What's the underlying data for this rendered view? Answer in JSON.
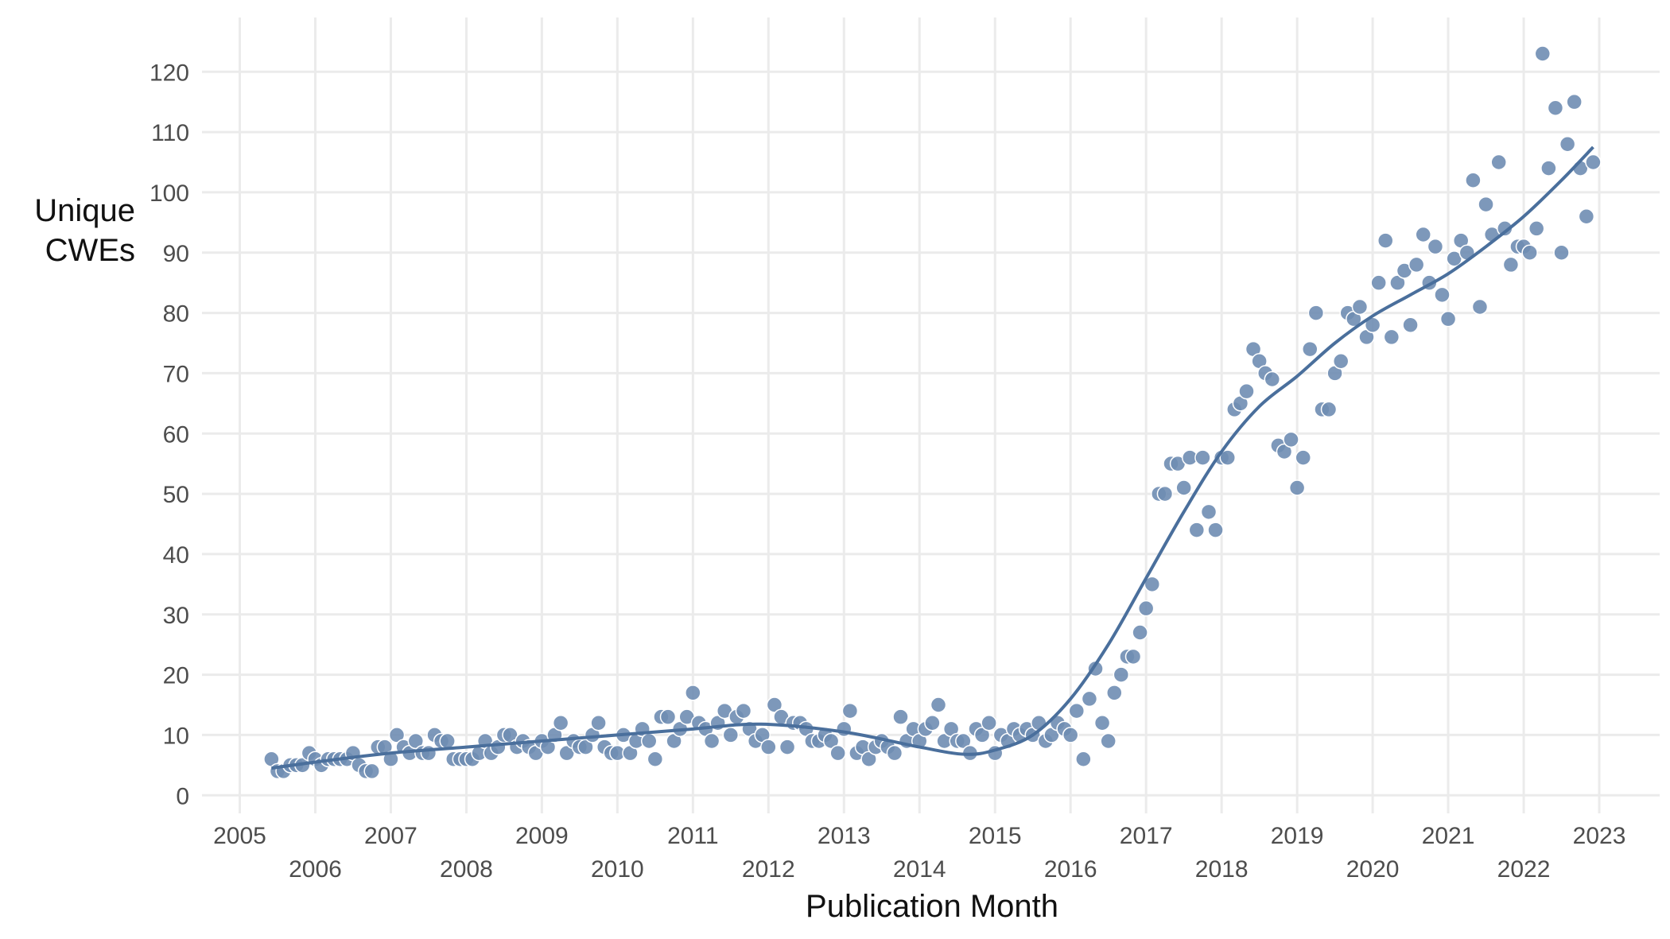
{
  "chart_data": {
    "type": "scatter",
    "x_label": "Publication Month",
    "y_label": "Unique CWEs",
    "xlim": [
      2004.5,
      2023.8
    ],
    "ylim": [
      -3,
      129
    ],
    "xticks": [
      2005,
      2006,
      2007,
      2008,
      2009,
      2010,
      2011,
      2012,
      2013,
      2014,
      2015,
      2016,
      2017,
      2018,
      2019,
      2020,
      2021,
      2022,
      2023
    ],
    "yticks": [
      0,
      10,
      20,
      30,
      40,
      50,
      60,
      70,
      80,
      90,
      100,
      110,
      120
    ],
    "grid": true,
    "color": "#6f8db3",
    "x": [
      2005.42,
      2005.5,
      2005.58,
      2005.67,
      2005.75,
      2005.83,
      2005.92,
      2006,
      2006.08,
      2006.17,
      2006.25,
      2006.33,
      2006.42,
      2006.5,
      2006.58,
      2006.67,
      2006.75,
      2006.83,
      2006.92,
      2007,
      2007.08,
      2007.17,
      2007.25,
      2007.33,
      2007.42,
      2007.5,
      2007.58,
      2007.67,
      2007.75,
      2007.83,
      2007.92,
      2008,
      2008.08,
      2008.17,
      2008.25,
      2008.33,
      2008.42,
      2008.5,
      2008.58,
      2008.67,
      2008.75,
      2008.83,
      2008.92,
      2009,
      2009.08,
      2009.17,
      2009.25,
      2009.33,
      2009.42,
      2009.5,
      2009.58,
      2009.67,
      2009.75,
      2009.83,
      2009.92,
      2010,
      2010.08,
      2010.17,
      2010.25,
      2010.33,
      2010.42,
      2010.5,
      2010.58,
      2010.67,
      2010.75,
      2010.83,
      2010.92,
      2011,
      2011.08,
      2011.17,
      2011.25,
      2011.33,
      2011.42,
      2011.5,
      2011.58,
      2011.67,
      2011.75,
      2011.83,
      2011.92,
      2012,
      2012.08,
      2012.17,
      2012.25,
      2012.33,
      2012.42,
      2012.5,
      2012.58,
      2012.67,
      2012.75,
      2012.83,
      2012.92,
      2013,
      2013.08,
      2013.17,
      2013.25,
      2013.33,
      2013.42,
      2013.5,
      2013.58,
      2013.67,
      2013.75,
      2013.83,
      2013.92,
      2014,
      2014.08,
      2014.17,
      2014.25,
      2014.33,
      2014.42,
      2014.5,
      2014.58,
      2014.67,
      2014.75,
      2014.83,
      2014.92,
      2015,
      2015.08,
      2015.17,
      2015.25,
      2015.33,
      2015.42,
      2015.5,
      2015.58,
      2015.67,
      2015.75,
      2015.83,
      2015.92,
      2016,
      2016.08,
      2016.17,
      2016.25,
      2016.33,
      2016.42,
      2016.5,
      2016.58,
      2016.67,
      2016.75,
      2016.83,
      2016.92,
      2017,
      2017.08,
      2017.17,
      2017.25,
      2017.33,
      2017.42,
      2017.5,
      2017.58,
      2017.67,
      2017.75,
      2017.83,
      2017.92,
      2018,
      2018.08,
      2018.17,
      2018.25,
      2018.33,
      2018.42,
      2018.5,
      2018.58,
      2018.67,
      2018.75,
      2018.83,
      2018.92,
      2019,
      2019.08,
      2019.17,
      2019.25,
      2019.33,
      2019.42,
      2019.5,
      2019.58,
      2019.67,
      2019.75,
      2019.83,
      2019.92,
      2020,
      2020.08,
      2020.17,
      2020.25,
      2020.33,
      2020.42,
      2020.5,
      2020.58,
      2020.67,
      2020.75,
      2020.83,
      2020.92,
      2021,
      2021.08,
      2021.17,
      2021.25,
      2021.33,
      2021.42,
      2021.5,
      2021.58,
      2021.67,
      2021.75,
      2021.83,
      2021.92,
      2022,
      2022.08,
      2022.17,
      2022.25,
      2022.33,
      2022.42,
      2022.5,
      2022.58,
      2022.67,
      2022.75,
      2022.83,
      2022.92
    ],
    "values": [
      6,
      4,
      4,
      5,
      5,
      5,
      7,
      6,
      5,
      6,
      6,
      6,
      6,
      7,
      5,
      4,
      4,
      8,
      8,
      6,
      10,
      8,
      7,
      9,
      7,
      7,
      10,
      9,
      9,
      6,
      6,
      6,
      6,
      7,
      9,
      7,
      8,
      10,
      10,
      8,
      9,
      8,
      7,
      9,
      8,
      10,
      12,
      7,
      9,
      8,
      8,
      10,
      12,
      8,
      7,
      7,
      10,
      7,
      9,
      11,
      9,
      6,
      13,
      13,
      9,
      11,
      13,
      17,
      12,
      11,
      9,
      12,
      14,
      10,
      13,
      14,
      11,
      9,
      10,
      8,
      15,
      13,
      8,
      12,
      12,
      11,
      9,
      9,
      10,
      9,
      7,
      11,
      14,
      7,
      8,
      6,
      8,
      9,
      8,
      7,
      13,
      9,
      11,
      9,
      11,
      12,
      15,
      9,
      11,
      9,
      9,
      7,
      11,
      10,
      12,
      7,
      10,
      9,
      11,
      10,
      11,
      10,
      12,
      9,
      10,
      12,
      11,
      10,
      14,
      6,
      16,
      21,
      12,
      9,
      17,
      20,
      23,
      23,
      27,
      31,
      35,
      50,
      50,
      55,
      55,
      51,
      56,
      44,
      56,
      47,
      44,
      56,
      56,
      64,
      65,
      67,
      74,
      72,
      70,
      69,
      58,
      57,
      59,
      51,
      56,
      74,
      80,
      64,
      64,
      70,
      72,
      80,
      79,
      81,
      76,
      78,
      85,
      92,
      76,
      85,
      87,
      78,
      88,
      93,
      85,
      91,
      83,
      79,
      89,
      92,
      90,
      102,
      81,
      98,
      93,
      105,
      94,
      88,
      91,
      91,
      90,
      94,
      123,
      104,
      114,
      90,
      108,
      115,
      104,
      96,
      105
    ],
    "smooth": {
      "color": "#4a6f9c",
      "x": [
        2005.42,
        2006,
        2007,
        2008,
        2009,
        2010,
        2011,
        2011.9,
        2013,
        2014,
        2014.6,
        2015,
        2015.5,
        2016,
        2016.5,
        2017,
        2017.5,
        2018,
        2018.5,
        2019,
        2019.5,
        2020,
        2020.5,
        2021,
        2021.5,
        2022,
        2022.5,
        2022.92
      ],
      "values": [
        4.5,
        5.5,
        7,
        8,
        9,
        10,
        11,
        11.8,
        10.5,
        8,
        6.8,
        7.5,
        10,
        16,
        25,
        36,
        47,
        57,
        64.5,
        69.5,
        75,
        79.5,
        83,
        86.5,
        91,
        96,
        102,
        107.5
      ]
    }
  }
}
